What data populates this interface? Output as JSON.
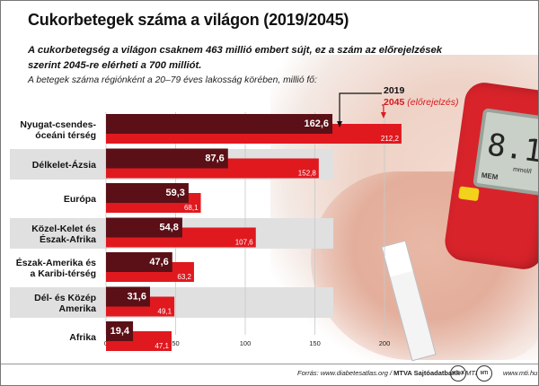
{
  "title": "Cukorbetegek száma a világon (2019/2045)",
  "lead": "A cukorbetegség a világon csaknem 463 millió embert sújt, ez a szám az előrejelzések szerint 2045-re elérheti a 700 milliót.",
  "subtitle": "A betegek száma régiónként a 20–79 éves lakosság körében, millió fő:",
  "legend": {
    "year1": "2019",
    "year2": "2045",
    "year2_note": "(előrejelzés)"
  },
  "colors": {
    "series2019": "#5a1016",
    "series2045": "#e0191f",
    "band": "#e0e0e0"
  },
  "photo": {
    "meter_reading": "8.1",
    "meter_unit": "mmol/l",
    "meter_mem": "MEM"
  },
  "footer": {
    "source_prefix": "Forrás: www.diabetesatlas.org / ",
    "source_agency": "MTVA Sajtóadatbank",
    "source_suffix": " / MTI",
    "logo1": "MTVA",
    "logo2": "MTI",
    "url": "www.mti.hu"
  },
  "chart_data": {
    "type": "bar",
    "orientation": "horizontal",
    "title": "Cukorbetegek száma a világon (2019/2045)",
    "xlabel": "",
    "ylabel": "",
    "xlim": [
      0,
      230
    ],
    "ticks": [
      0,
      50,
      100,
      150,
      200
    ],
    "grid": true,
    "categories": [
      [
        "Nyugat-csendes-",
        "óceáni térség"
      ],
      [
        "Délkelet-Ázsia"
      ],
      [
        "Európa"
      ],
      [
        "Közel-Kelet és",
        "Észak-Afrika"
      ],
      [
        "Észak-Amerika és",
        "a Karibi-térség"
      ],
      [
        "Dél- és Közép",
        "Amerika"
      ],
      [
        "Afrika"
      ]
    ],
    "series": [
      {
        "name": "2019",
        "values": [
          162.6,
          87.6,
          59.3,
          54.8,
          47.6,
          31.6,
          19.4
        ],
        "labels": [
          "162,6",
          "87,6",
          "59,3",
          "54,8",
          "47,6",
          "31,6",
          "19,4"
        ]
      },
      {
        "name": "2045 (előrejelzés)",
        "values": [
          212.2,
          152.8,
          68.1,
          107.6,
          63.2,
          49.1,
          47.1
        ],
        "labels": [
          "212,2",
          "152,8",
          "68,1",
          "107,6",
          "63,2",
          "49,1",
          "47,1"
        ]
      }
    ]
  }
}
